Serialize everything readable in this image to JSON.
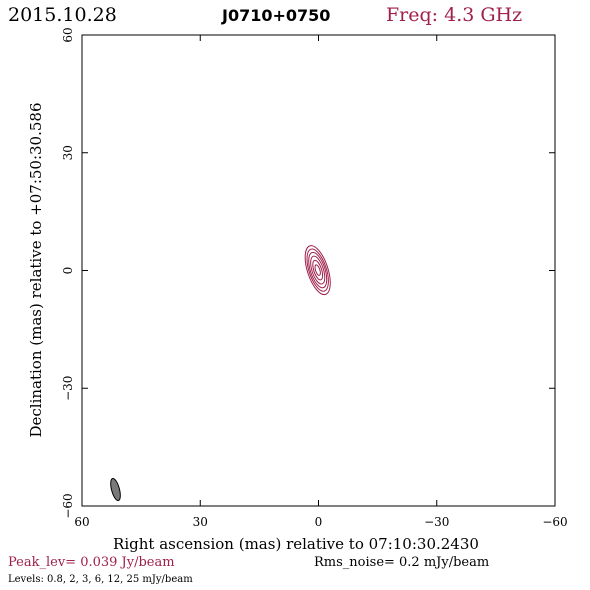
{
  "header": {
    "date": "2015.10.28",
    "source": "J0710+0750",
    "freq": "Freq: 4.3 GHz"
  },
  "colors": {
    "contour": "#a0204a",
    "beam_fill": "#7a7a7a",
    "frame": "#000000"
  },
  "footer": {
    "peak": "Peak_lev=  0.039 Jy/beam",
    "rms": "Rms_noise=  0.2 mJy/beam",
    "levels": "Levels: 0.8,   2,   3,   6,  12,  25 mJy/beam"
  },
  "chart_data": {
    "type": "contour",
    "xlabel": "Right ascension (mas) relative to 07:10:30.2430",
    "ylabel": "Declination (mas) relative to +07:50:30.586",
    "xlim": [
      60,
      -60
    ],
    "ylim": [
      -60,
      60
    ],
    "x_ticks": [
      60,
      30,
      0,
      -30,
      -60
    ],
    "x_tick_labels": [
      "60",
      "30",
      "0",
      "−30",
      "−60"
    ],
    "y_ticks": [
      -60,
      -30,
      0,
      30,
      60
    ],
    "y_tick_labels": [
      "−60",
      "−30",
      "0",
      "30",
      "60"
    ],
    "contour_levels_mJy": [
      0.8,
      2,
      3,
      6,
      12,
      25
    ],
    "peak_Jy_per_beam": 0.039,
    "rms_noise_mJy_per_beam": 0.2,
    "source_center": [
      0.2,
      0.1
    ],
    "source_position_angle_deg": 18,
    "source_contours": [
      {
        "level": 0.8,
        "semi_major": 6.5,
        "semi_minor": 2.6
      },
      {
        "level": 2,
        "semi_major": 5.6,
        "semi_minor": 2.2
      },
      {
        "level": 3,
        "semi_major": 4.7,
        "semi_minor": 1.85
      },
      {
        "level": 6,
        "semi_major": 3.7,
        "semi_minor": 1.45
      },
      {
        "level": 12,
        "semi_major": 2.6,
        "semi_minor": 1.0
      },
      {
        "level": 25,
        "semi_major": 1.4,
        "semi_minor": 0.55
      }
    ],
    "beam": {
      "center": [
        51.5,
        -55.8
      ],
      "semi_major": 2.9,
      "semi_minor": 1.0,
      "position_angle_deg": 15
    }
  }
}
